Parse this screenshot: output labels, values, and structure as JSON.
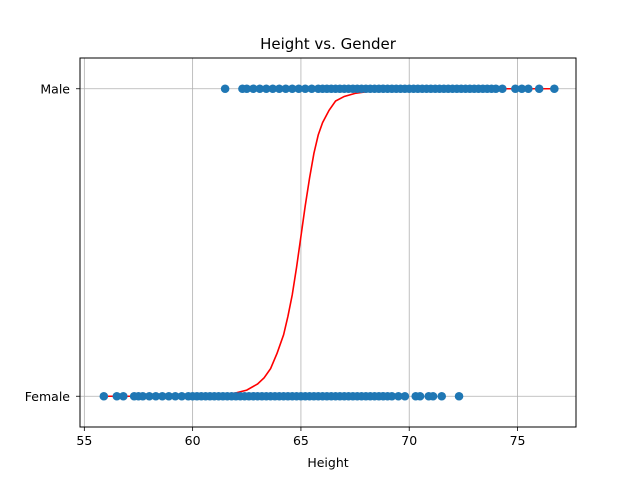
{
  "chart_data": {
    "type": "scatter",
    "title": "Height vs. Gender",
    "xlabel": "Height",
    "ylabel": "",
    "xlim": [
      54.8,
      77.7
    ],
    "xticks": [
      55,
      60,
      65,
      70,
      75
    ],
    "ylim": [
      -0.1,
      1.1
    ],
    "yticks": [
      0,
      1
    ],
    "ytick_labels": [
      "Female",
      "Male"
    ],
    "grid": true,
    "colors": {
      "points": "#1f77b4",
      "curve": "#ff0000",
      "grid": "#b0b0b0"
    },
    "series": [
      {
        "kind": "scatter",
        "y": 0,
        "x": [
          55.9,
          56.5,
          56.8,
          57.3,
          57.5,
          57.7,
          58.0,
          58.3,
          58.6,
          58.9,
          59.2,
          59.5,
          59.8,
          60.0,
          60.2,
          60.4,
          60.6,
          60.8,
          61.0,
          61.2,
          61.4,
          61.6,
          61.8,
          62.0,
          62.2,
          62.4,
          62.6,
          62.8,
          63.0,
          63.2,
          63.4,
          63.6,
          63.8,
          64.0,
          64.2,
          64.4,
          64.6,
          64.8,
          65.0,
          65.2,
          65.4,
          65.6,
          65.8,
          66.0,
          66.2,
          66.4,
          66.6,
          66.8,
          67.0,
          67.2,
          67.4,
          67.6,
          67.8,
          68.0,
          68.2,
          68.4,
          68.6,
          68.8,
          69.0,
          69.2,
          69.5,
          69.8,
          70.3,
          70.5,
          70.9,
          71.1,
          71.5,
          72.3
        ]
      },
      {
        "kind": "scatter",
        "y": 1,
        "x": [
          61.5,
          62.3,
          62.5,
          62.8,
          63.1,
          63.4,
          63.7,
          64.0,
          64.3,
          64.6,
          64.9,
          65.2,
          65.5,
          65.8,
          66.0,
          66.2,
          66.4,
          66.6,
          66.8,
          67.0,
          67.2,
          67.4,
          67.6,
          67.8,
          68.0,
          68.2,
          68.4,
          68.6,
          68.8,
          69.0,
          69.2,
          69.4,
          69.6,
          69.8,
          70.0,
          70.2,
          70.4,
          70.6,
          70.8,
          71.0,
          71.2,
          71.4,
          71.6,
          71.8,
          72.0,
          72.2,
          72.4,
          72.6,
          72.8,
          73.0,
          73.2,
          73.4,
          73.6,
          73.8,
          74.0,
          74.3,
          74.9,
          75.2,
          75.5,
          76.0,
          76.7
        ]
      },
      {
        "kind": "line",
        "x": [
          55.9,
          57.0,
          58.0,
          59.0,
          60.0,
          60.5,
          61.0,
          61.5,
          62.0,
          62.5,
          63.0,
          63.3,
          63.6,
          63.9,
          64.2,
          64.4,
          64.6,
          64.8,
          65.0,
          65.2,
          65.4,
          65.6,
          65.8,
          66.0,
          66.3,
          66.6,
          67.0,
          67.5,
          68.0,
          69.0,
          70.0,
          72.0,
          74.0,
          76.7
        ],
        "y": [
          0.0,
          0.0,
          0.0,
          0.0,
          0.001,
          0.002,
          0.004,
          0.006,
          0.011,
          0.02,
          0.04,
          0.06,
          0.09,
          0.14,
          0.2,
          0.26,
          0.33,
          0.42,
          0.52,
          0.62,
          0.71,
          0.79,
          0.85,
          0.89,
          0.93,
          0.96,
          0.975,
          0.985,
          0.99,
          0.995,
          0.998,
          1.0,
          1.0,
          1.0
        ]
      }
    ]
  }
}
